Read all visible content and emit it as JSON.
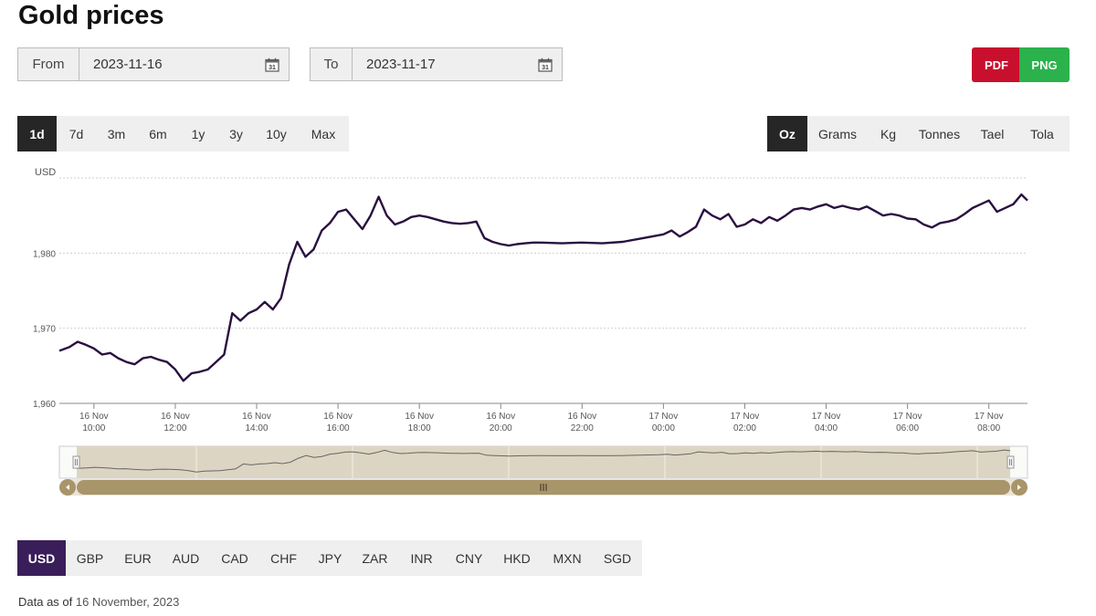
{
  "page": {
    "title": "Gold prices"
  },
  "date_range": {
    "from_label": "From",
    "from_value": "2023-11-16",
    "to_label": "To",
    "to_value": "2023-11-17"
  },
  "export": {
    "pdf_label": "PDF",
    "png_label": "PNG",
    "pdf_color": "#c8102e",
    "png_color": "#2bb24c"
  },
  "periods": {
    "items": [
      "1d",
      "7d",
      "3m",
      "6m",
      "1y",
      "3y",
      "10y",
      "Max"
    ],
    "selected": "1d"
  },
  "units": {
    "items": [
      "Oz",
      "Grams",
      "Kg",
      "Tonnes",
      "Tael",
      "Tola"
    ],
    "selected": "Oz"
  },
  "currencies": {
    "items": [
      "USD",
      "GBP",
      "EUR",
      "AUD",
      "CAD",
      "CHF",
      "JPY",
      "ZAR",
      "INR",
      "CNY",
      "HKD",
      "MXN",
      "SGD"
    ],
    "selected": "USD",
    "selected_color": "#3a1e5a"
  },
  "footer": {
    "prefix": "Data as of",
    "date": "16 November, 2023"
  },
  "icons": {
    "calendar": "calendar-31-icon",
    "scroll_left": "arrow-left-icon",
    "scroll_right": "arrow-right-icon",
    "grip": "grip-icon"
  },
  "chart_data": {
    "type": "line",
    "ylabel": "USD",
    "ylim": [
      1960,
      1990
    ],
    "y_ticks": [
      1960,
      1970,
      1980
    ],
    "y_tick_labels": [
      "1,960",
      "1,970",
      "1,980"
    ],
    "grid": true,
    "line_color": "#2a1040",
    "x_tick_hours": [
      10,
      12,
      14,
      16,
      18,
      20,
      22,
      24,
      26,
      28,
      30,
      32
    ],
    "x_tick_labels": [
      [
        "16 Nov",
        "10:00"
      ],
      [
        "16 Nov",
        "12:00"
      ],
      [
        "16 Nov",
        "14:00"
      ],
      [
        "16 Nov",
        "16:00"
      ],
      [
        "16 Nov",
        "18:00"
      ],
      [
        "16 Nov",
        "20:00"
      ],
      [
        "16 Nov",
        "22:00"
      ],
      [
        "17 Nov",
        "00:00"
      ],
      [
        "17 Nov",
        "02:00"
      ],
      [
        "17 Nov",
        "04:00"
      ],
      [
        "17 Nov",
        "06:00"
      ],
      [
        "17 Nov",
        "08:00"
      ]
    ],
    "series": [
      {
        "x": [
          9.15,
          9.4,
          9.6,
          9.8,
          10.0,
          10.2,
          10.4,
          10.6,
          10.8,
          11.0,
          11.2,
          11.4,
          11.6,
          11.8,
          12.0,
          12.2,
          12.4,
          12.6,
          12.8,
          13.0,
          13.2,
          13.4,
          13.6,
          13.8,
          14.0,
          14.2,
          14.4,
          14.6,
          14.8,
          15.0,
          15.2,
          15.4,
          15.6,
          15.8,
          16.0,
          16.2,
          16.4,
          16.6,
          16.8,
          17.0,
          17.2,
          17.4,
          17.6,
          17.8,
          18.0,
          18.2,
          18.4,
          18.6,
          18.8,
          19.0,
          19.2,
          19.4,
          19.6,
          19.8,
          20.0,
          20.2,
          20.4,
          20.6,
          20.8,
          21.0,
          21.5,
          22.0,
          22.5,
          23.0,
          23.5,
          24.0,
          24.2,
          24.4,
          24.6,
          24.8,
          25.0,
          25.2,
          25.4,
          25.6,
          25.8,
          26.0,
          26.2,
          26.4,
          26.6,
          26.8,
          27.0,
          27.2,
          27.4,
          27.6,
          27.8,
          28.0,
          28.2,
          28.4,
          28.6,
          28.8,
          29.0,
          29.2,
          29.4,
          29.6,
          29.8,
          30.0,
          30.2,
          30.4,
          30.6,
          30.8,
          31.0,
          31.2,
          31.4,
          31.6,
          31.8,
          32.0,
          32.2,
          32.4,
          32.6,
          32.8,
          32.95
        ],
        "y": [
          1967.0,
          1967.5,
          1968.2,
          1967.8,
          1967.3,
          1966.5,
          1966.7,
          1966.0,
          1965.5,
          1965.2,
          1966.0,
          1966.2,
          1965.8,
          1965.5,
          1964.5,
          1963.0,
          1964.0,
          1964.2,
          1964.5,
          1965.5,
          1966.5,
          1972.0,
          1971.0,
          1972.0,
          1972.5,
          1973.5,
          1972.5,
          1974.0,
          1978.5,
          1981.5,
          1979.5,
          1980.5,
          1983.0,
          1984.0,
          1985.5,
          1985.8,
          1984.5,
          1983.2,
          1985.0,
          1987.5,
          1985.0,
          1983.8,
          1984.2,
          1984.8,
          1985.0,
          1984.8,
          1984.5,
          1984.2,
          1984.0,
          1983.9,
          1984.0,
          1984.2,
          1982.0,
          1981.5,
          1981.2,
          1981.0,
          1981.2,
          1981.3,
          1981.4,
          1981.4,
          1981.3,
          1981.4,
          1981.3,
          1981.5,
          1982.0,
          1982.5,
          1983.0,
          1982.2,
          1982.8,
          1983.5,
          1985.8,
          1985.0,
          1984.5,
          1985.2,
          1983.5,
          1983.8,
          1984.5,
          1984.0,
          1984.8,
          1984.3,
          1985.0,
          1985.8,
          1986.0,
          1985.8,
          1986.2,
          1986.5,
          1986.0,
          1986.3,
          1986.0,
          1985.8,
          1986.2,
          1985.6,
          1985.0,
          1985.2,
          1985.0,
          1984.6,
          1984.5,
          1983.8,
          1983.4,
          1984.0,
          1984.2,
          1984.5,
          1985.2,
          1986.0,
          1986.5,
          1987.0,
          1985.5,
          1986.0,
          1986.5,
          1987.8,
          1987.0
        ]
      }
    ]
  }
}
